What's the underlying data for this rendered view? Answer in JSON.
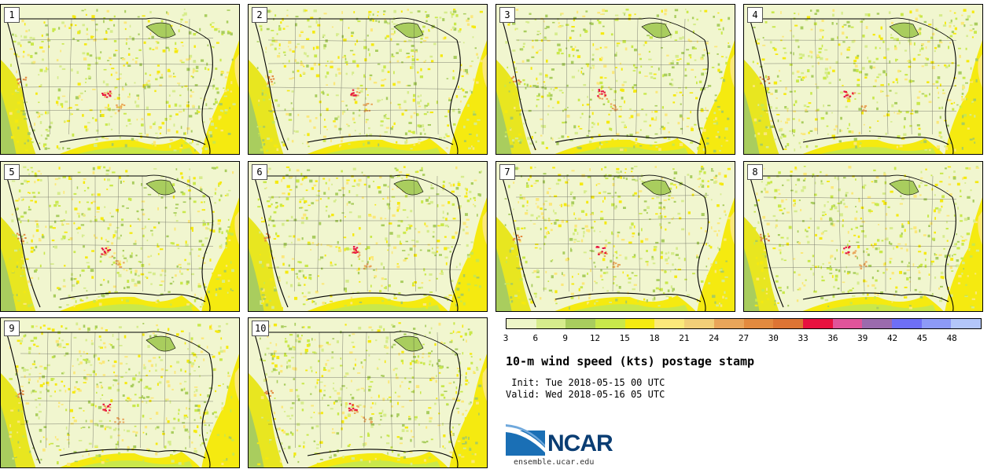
{
  "panels": [
    "1",
    "2",
    "3",
    "4",
    "5",
    "6",
    "7",
    "8",
    "9",
    "10"
  ],
  "colorbar": {
    "colors": [
      "#eef6c8",
      "#d6ec8c",
      "#a9cd5e",
      "#c9e84b",
      "#f5ea10",
      "#fbe87a",
      "#f2cf78",
      "#e9a55a",
      "#e38a3f",
      "#dd7434",
      "#e8123f",
      "#e0549a",
      "#9b6bad",
      "#6e6ff6",
      "#8d9af7",
      "#b3c6f9"
    ],
    "labels": [
      "3",
      "6",
      "9",
      "12",
      "15",
      "18",
      "21",
      "24",
      "27",
      "30",
      "33",
      "36",
      "39",
      "42",
      "45",
      "48"
    ]
  },
  "title": "10-m wind speed (kts) postage stamp",
  "init": " Init: Tue 2018-05-15 00 UTC",
  "valid": "Valid: Wed 2018-05-16 05 UTC",
  "logo": {
    "text": "NCAR"
  },
  "site": "ensemble.ucar.edu"
}
